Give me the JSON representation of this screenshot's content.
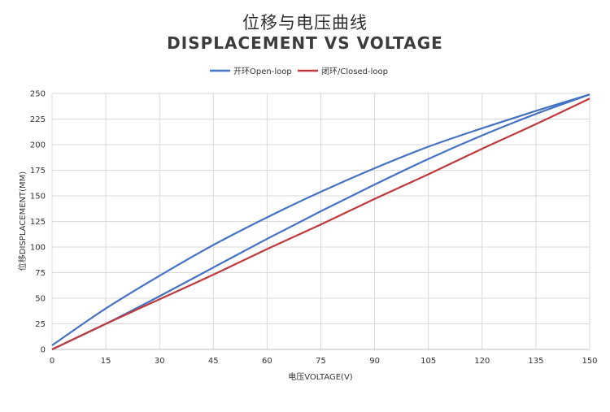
{
  "chart_data": {
    "type": "line",
    "title": "位移与电压曲线",
    "subtitle": "DISPLACEMENT VS VOLTAGE",
    "xlabel": "电压VOLTAGE(V)",
    "ylabel": "位移DISPLACEMENT(MM)",
    "xlim": [
      0,
      150
    ],
    "ylim": [
      0,
      250
    ],
    "xticks": [
      "0",
      "15",
      "30",
      "45",
      "60",
      "75",
      "90",
      "105",
      "120",
      "135",
      "150"
    ],
    "yticks": [
      "0",
      "25",
      "50",
      "75",
      "100",
      "125",
      "150",
      "175",
      "200",
      "225",
      "250"
    ],
    "grid": true,
    "legend_position": "top-center",
    "series": [
      {
        "name": "开环Open-loop",
        "color": "#4472c4",
        "x": [
          0,
          15,
          30,
          45,
          60,
          75,
          90,
          105,
          120,
          135,
          150
        ],
        "y": [
          4,
          40,
          72,
          102,
          129,
          154,
          177,
          198,
          216,
          233,
          249
        ]
      },
      {
        "name": "开环Open-loop (return)",
        "color": "#4472c4",
        "x": [
          0,
          15,
          30,
          45,
          60,
          75,
          90,
          105,
          120,
          135,
          150
        ],
        "y": [
          0,
          25,
          52,
          80,
          108,
          135,
          161,
          186,
          209,
          230,
          249
        ]
      },
      {
        "name": "闭环/Closed-loop",
        "color": "#c0393b",
        "x": [
          0,
          15,
          30,
          45,
          60,
          75,
          90,
          105,
          120,
          135,
          150
        ],
        "y": [
          0,
          25,
          49,
          73,
          98,
          122,
          147,
          171,
          196,
          220,
          245
        ]
      }
    ]
  }
}
